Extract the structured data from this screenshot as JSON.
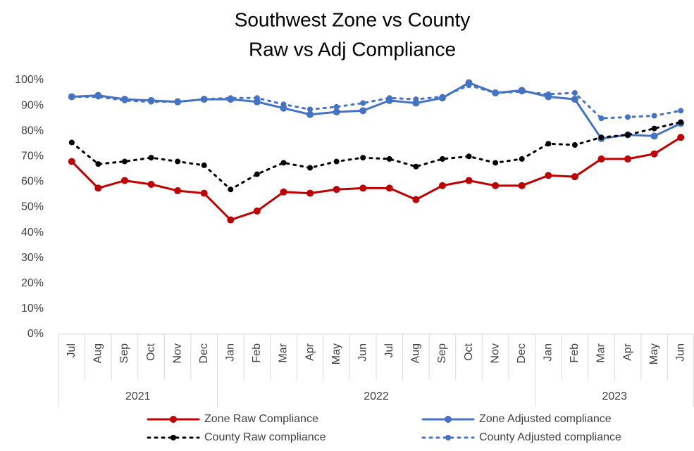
{
  "chart_data": {
    "type": "line",
    "title": "Southwest Zone vs County",
    "subtitle": "Raw vs Adj Compliance",
    "categories": [
      "Jul",
      "Aug",
      "Sep",
      "Oct",
      "Nov",
      "Dec",
      "Jan",
      "Feb",
      "Mar",
      "Apr",
      "May",
      "Jun",
      "Jul",
      "Aug",
      "Sep",
      "Oct",
      "Nov",
      "Dec",
      "Jan",
      "Feb",
      "Mar",
      "Apr",
      "May",
      "Jun"
    ],
    "groups": [
      {
        "name": "2021",
        "start": 0,
        "end": 5
      },
      {
        "name": "2022",
        "start": 6,
        "end": 17
      },
      {
        "name": "2023",
        "start": 18,
        "end": 23
      }
    ],
    "ylim": [
      0,
      100
    ],
    "yticks": [
      {
        "value": 0,
        "label": "0%"
      },
      {
        "value": 10,
        "label": "10%"
      },
      {
        "value": 20,
        "label": "20%"
      },
      {
        "value": 30,
        "label": "30%"
      },
      {
        "value": 40,
        "label": "40%"
      },
      {
        "value": 50,
        "label": "50%"
      },
      {
        "value": 60,
        "label": "60%"
      },
      {
        "value": 70,
        "label": "70%"
      },
      {
        "value": 80,
        "label": "80%"
      },
      {
        "value": 90,
        "label": "90%"
      },
      {
        "value": 100,
        "label": "100%"
      }
    ],
    "grid": false,
    "legend": "bottom",
    "series": [
      {
        "name": "Zone Raw Compliance",
        "color": "#c00000",
        "dash": "solid",
        "values": [
          68,
          57.5,
          60.5,
          59,
          56.5,
          55.5,
          45,
          48.5,
          56,
          55.5,
          57,
          57.5,
          57.5,
          53,
          58.5,
          60.5,
          58.5,
          58.5,
          62.5,
          62,
          69,
          69,
          71,
          77.5
        ]
      },
      {
        "name": "Zone Adjusted compliance",
        "color": "#4472c4",
        "dash": "solid",
        "values": [
          93.5,
          94,
          92.5,
          92,
          91.5,
          92.5,
          92.5,
          91.5,
          89,
          86.5,
          87.5,
          88,
          92,
          91,
          93,
          99,
          95,
          96,
          93.5,
          92.5,
          77,
          78.5,
          78,
          83
        ]
      },
      {
        "name": "County Raw compliance",
        "color": "#000000",
        "dash": "dotted",
        "values": [
          75.5,
          67,
          68,
          69.5,
          68,
          66.5,
          57,
          63,
          67.5,
          65.5,
          68,
          69.5,
          69,
          66,
          69,
          70,
          67.5,
          69,
          75,
          74.5,
          77.5,
          78.5,
          81,
          83.5
        ]
      },
      {
        "name": "County Adjusted compliance",
        "color": "#4472c4",
        "dash": "dotted",
        "values": [
          93.5,
          93.5,
          92,
          91.5,
          91.5,
          92.5,
          93,
          93,
          90.5,
          88.5,
          89.5,
          91,
          93,
          92.5,
          93.5,
          98,
          95,
          95.5,
          94.5,
          95,
          85,
          85.5,
          86,
          88
        ]
      }
    ]
  }
}
